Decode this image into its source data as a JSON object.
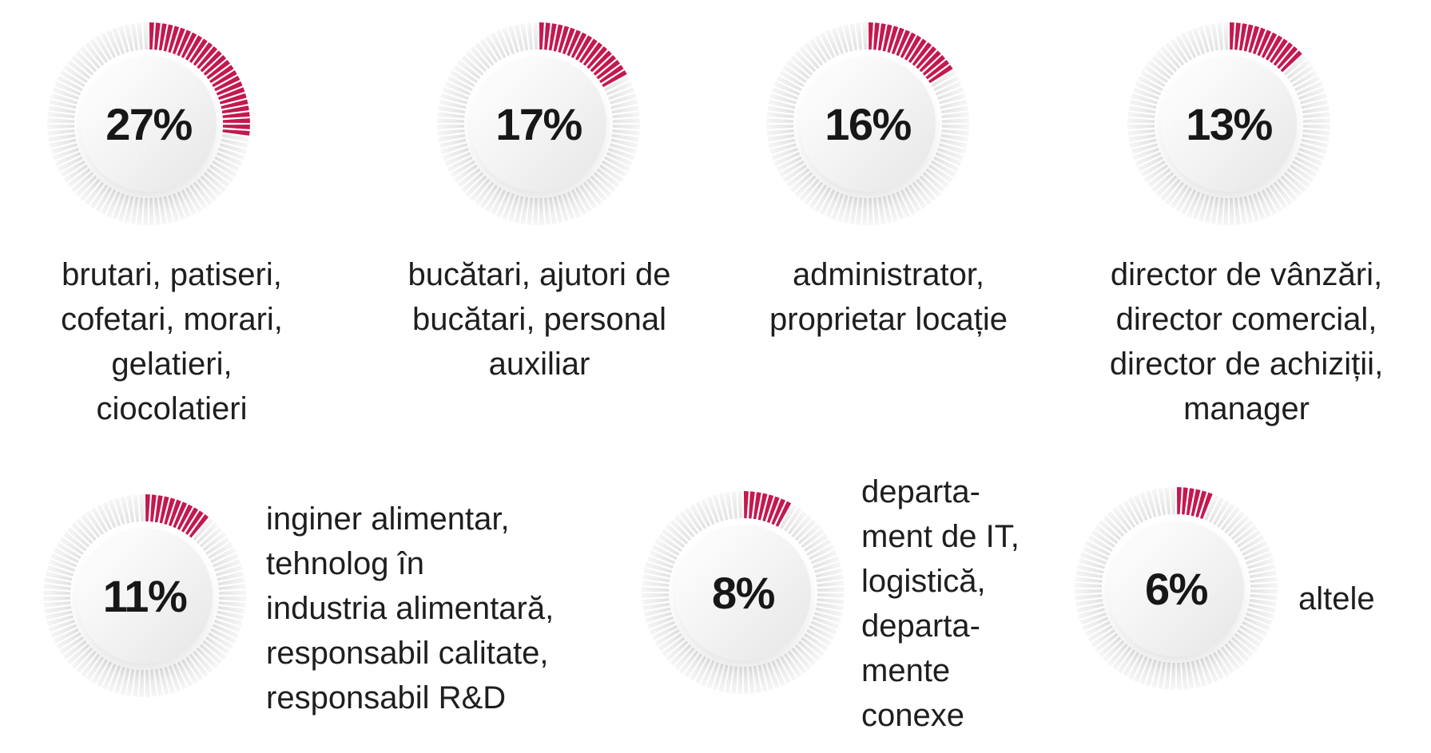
{
  "colors": {
    "accent": "#c3194f",
    "tick_inactive": "#e9e9e9",
    "text": "#1e1e1e",
    "background": "#ffffff"
  },
  "chart_data": {
    "type": "donut",
    "unit": "%",
    "tick_total": 100,
    "start_angle_deg": 0,
    "direction": "clockwise",
    "legend_position": "adjacent-to-each-donut",
    "series": [
      {
        "value": 27,
        "value_label": "27%",
        "label": "brutari, patiseri, cofetari, morari, gelatieri, ciocolatieri"
      },
      {
        "value": 17,
        "value_label": "17%",
        "label": "bucătari, ajutori de bucătari, personal auxiliar"
      },
      {
        "value": 16,
        "value_label": "16%",
        "label": "administrator, proprietar locație"
      },
      {
        "value": 13,
        "value_label": "13%",
        "label": "director de vânzări, director comercial, director de achiziții, manager"
      },
      {
        "value": 11,
        "value_label": "11%",
        "label": "inginer alimentar, tehnolog în industria alimentară, responsabil calitate, responsabil R&D"
      },
      {
        "value": 8,
        "value_label": "8%",
        "label": "departament de IT, logistică, departamente conexe"
      },
      {
        "value": 6,
        "value_label": "6%",
        "label": "altele"
      }
    ]
  },
  "charts": [
    {
      "pct": "27%",
      "label_display": "brutari, patiseri,\ncofetari, morari,\ngelatieri,\nciocolatieri"
    },
    {
      "pct": "17%",
      "label_display": "bucătari, ajutori de\nbucătari, personal\nauxiliar"
    },
    {
      "pct": "16%",
      "label_display": "administrator,\nproprietar locație"
    },
    {
      "pct": "13%",
      "label_display": "director de vânzări,\ndirector comercial,\ndirector de achiziții,\nmanager"
    },
    {
      "pct": "11%",
      "label_display": "inginer alimentar,\ntehnolog în\nindustria alimentară,\nresponsabil calitate,\nresponsabil R&D"
    },
    {
      "pct": "8%",
      "label_display": "departa-\nment de IT,\nlogistică,\ndeparta-\nmente\nconexe"
    },
    {
      "pct": "6%",
      "label_display": "altele"
    }
  ]
}
